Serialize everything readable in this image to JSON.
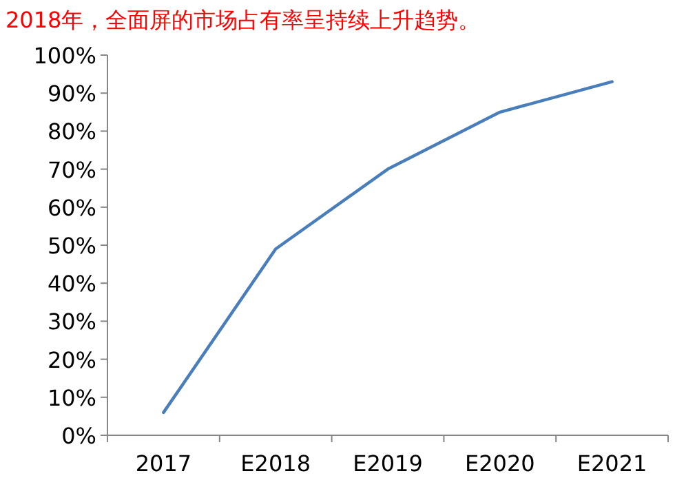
{
  "chart_data": {
    "type": "line",
    "title": "2018年，全面屏的市场占有率呈持续上升趋势。",
    "categories": [
      "2017",
      "E2018",
      "E2019",
      "E2020",
      "E2021"
    ],
    "series": [
      {
        "color": "#4a7ebb",
        "values": [
          6,
          49,
          70,
          85,
          93
        ]
      }
    ],
    "ylim": [
      0,
      100
    ],
    "yticks": [
      {
        "value": 0,
        "label": "0%"
      },
      {
        "value": 10,
        "label": "10%"
      },
      {
        "value": 20,
        "label": "20%"
      },
      {
        "value": 30,
        "label": "30%"
      },
      {
        "value": 40,
        "label": "40%"
      },
      {
        "value": 50,
        "label": "50%"
      },
      {
        "value": 60,
        "label": "60%"
      },
      {
        "value": 70,
        "label": "70%"
      },
      {
        "value": 80,
        "label": "80%"
      },
      {
        "value": 90,
        "label": "90%"
      },
      {
        "value": 100,
        "label": "100%"
      }
    ]
  }
}
